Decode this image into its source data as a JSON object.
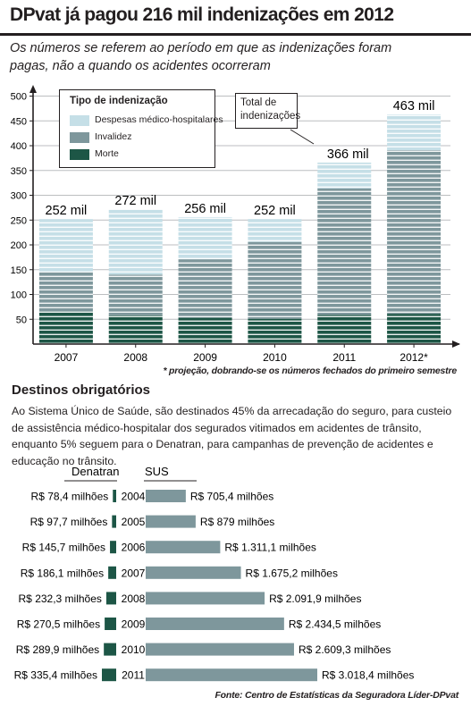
{
  "title": "DPvat já pagou 216 mil indenizações em 2012",
  "subtitle": "Os números se referem ao período em que as indenizações foram pagas, não a quando os acidentes ocorreram",
  "colors": {
    "morte": "#1d5646",
    "invalidez": "#7e979c",
    "despesas": "#c5dfe7",
    "denatran": "#1d5646",
    "sus": "#7e979c"
  },
  "legend": {
    "title": "Tipo de indenização",
    "items": [
      {
        "label": "Despesas médico-hospitalares",
        "color_key": "despesas"
      },
      {
        "label": "Invalidez",
        "color_key": "invalidez"
      },
      {
        "label": "Morte",
        "color_key": "morte"
      }
    ]
  },
  "callout": "Total de indenizações",
  "footnote": "* projeção, dobrando-se os números fechados do primeiro semestre",
  "section": {
    "title": "Destinos obrigatórios",
    "text": "Ao Sistema Único de Saúde, são destinados 45% da arrecadação do seguro, para custeio de assistência médico-hospitalar dos segurados vitimados em acidentes de trânsito, enquanto 5% seguem para o Denatran, para campanhas de prevenção de acidentes e educação no trânsito."
  },
  "source": "Fonte: Centro de Estatísticas da Seguradora Líder-DPvat",
  "chart_data": [
    {
      "type": "bar",
      "stacked": true,
      "categories": [
        "2007",
        "2008",
        "2009",
        "2010",
        "2011",
        "2012*"
      ],
      "series": [
        {
          "name": "Morte",
          "values": [
            66,
            58,
            53,
            51,
            59,
            61
          ]
        },
        {
          "name": "Invalidez",
          "values": [
            80,
            82,
            118,
            155,
            255,
            330
          ]
        },
        {
          "name": "Despesas médico-hospitalares",
          "values": [
            106,
            132,
            85,
            46,
            52,
            72
          ]
        }
      ],
      "total_labels": [
        "252 mil",
        "272 mil",
        "256 mil",
        "252 mil",
        "366 mil",
        "463 mil"
      ],
      "ylim": [
        0,
        510
      ],
      "yticks": [
        50,
        100,
        150,
        200,
        250,
        300,
        350,
        400,
        450,
        500
      ],
      "ytick_labels": [
        "50",
        "100",
        "150",
        "200",
        "250",
        "300",
        "350",
        "400",
        "450",
        "500"
      ],
      "grid": true,
      "legend_position": "top-left"
    },
    {
      "type": "bar",
      "orientation": "horizontal",
      "categories": [
        "2004",
        "2005",
        "2006",
        "2007",
        "2008",
        "2009",
        "2010",
        "2011"
      ],
      "series": [
        {
          "name": "Denatran",
          "values": [
            78.4,
            97.7,
            145.7,
            186.1,
            232.3,
            270.5,
            289.9,
            335.4
          ],
          "labels": [
            "R$ 78,4 milhões",
            "R$ 97,7 milhões",
            "R$ 145,7 milhões",
            "R$ 186,1 milhões",
            "R$ 232,3 milhões",
            "R$ 270,5 milhões",
            "R$ 289,9 milhões",
            "R$ 335,4  milhões"
          ]
        },
        {
          "name": "SUS",
          "values": [
            705.4,
            879,
            1311.1,
            1675.2,
            2091.9,
            2434.5,
            2609.3,
            3018.4
          ],
          "labels": [
            "R$ 705,4 milhões",
            "R$ 879 milhões",
            "R$ 1.311,1 milhões",
            "R$ 1.675,2 milhões",
            "R$ 2.091,9 milhões",
            "R$ 2.434,5 milhões",
            "R$ 2.609,3 milhões",
            "R$ 3.018,4  milhões"
          ]
        }
      ]
    }
  ]
}
